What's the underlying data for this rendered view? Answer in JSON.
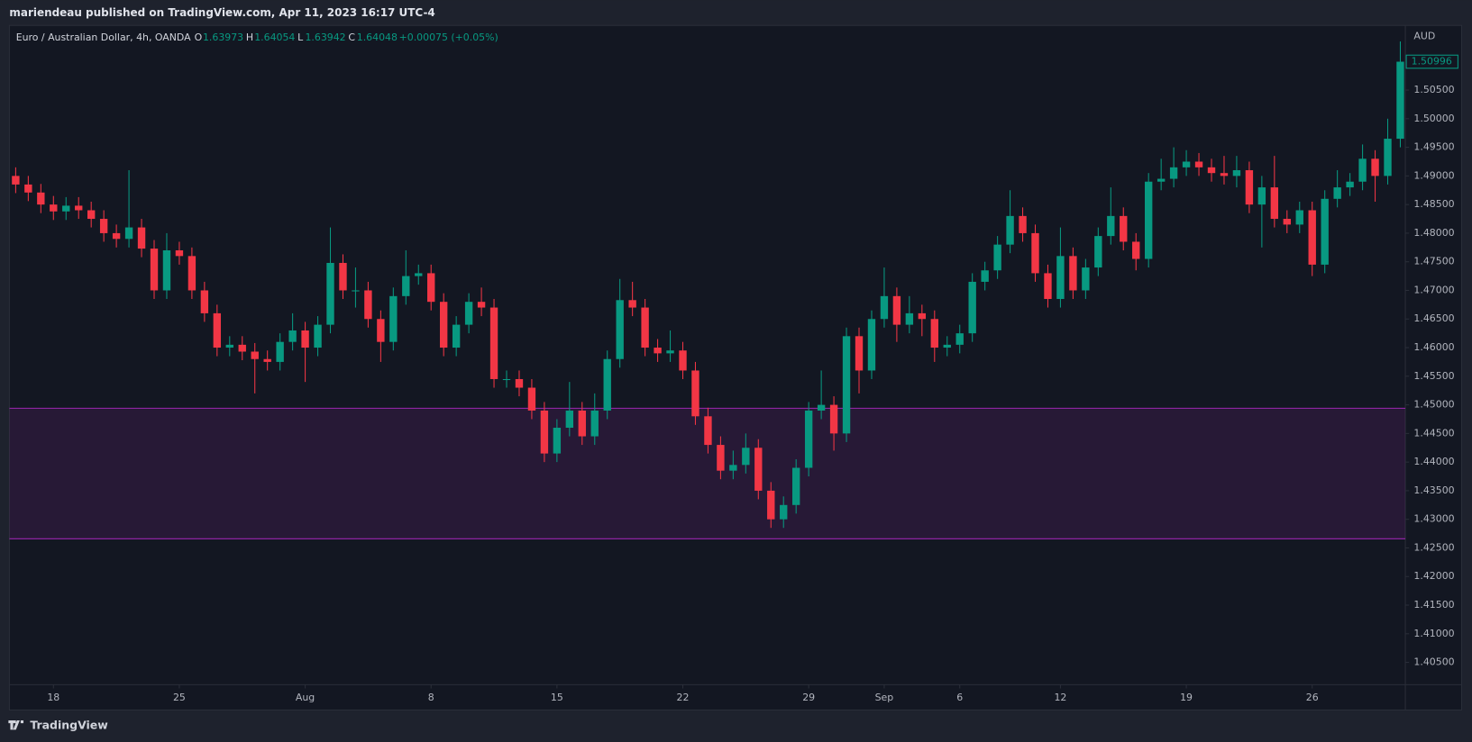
{
  "header": {
    "text": "mariendeau published on TradingView.com, Apr 11, 2023 16:17 UTC-4"
  },
  "footer": {
    "brand": "TradingView"
  },
  "chart_data": {
    "type": "candlestick",
    "legend": {
      "symbol": "Euro / Australian Dollar, 4h, OANDA",
      "open_label": "O",
      "open": 1.63973,
      "high_label": "H",
      "high": 1.64054,
      "low_label": "L",
      "low": 1.63942,
      "close_label": "C",
      "close": 1.64048,
      "change": "+0.00075 (+0.05%)"
    },
    "currency": "AUD",
    "up_color": "#089981",
    "down_color": "#f23645",
    "zone": {
      "low": 1.4266,
      "high": 1.4494,
      "color": "#9c27b0"
    },
    "grid": false,
    "xlim": [
      -1.75,
      53.7
    ],
    "xticks": [
      {
        "value": 0,
        "label": "18"
      },
      {
        "value": 5,
        "label": "25"
      },
      {
        "value": 10,
        "label": "Aug"
      },
      {
        "value": 15,
        "label": "8"
      },
      {
        "value": 20,
        "label": "15"
      },
      {
        "value": 25,
        "label": "22"
      },
      {
        "value": 30,
        "label": "29"
      },
      {
        "value": 33,
        "label": "Sep"
      },
      {
        "value": 36,
        "label": "6"
      },
      {
        "value": 40,
        "label": "12"
      },
      {
        "value": 45,
        "label": "19"
      },
      {
        "value": 50,
        "label": "26"
      }
    ],
    "ylim": [
      1.4011,
      1.5163
    ],
    "yticks": [
      {
        "value": 1.405,
        "label": "1.40500"
      },
      {
        "value": 1.41,
        "label": "1.41000"
      },
      {
        "value": 1.415,
        "label": "1.41500"
      },
      {
        "value": 1.42,
        "label": "1.42000"
      },
      {
        "value": 1.425,
        "label": "1.42500"
      },
      {
        "value": 1.43,
        "label": "1.43000"
      },
      {
        "value": 1.435,
        "label": "1.43500"
      },
      {
        "value": 1.44,
        "label": "1.44000"
      },
      {
        "value": 1.445,
        "label": "1.44500"
      },
      {
        "value": 1.45,
        "label": "1.45000"
      },
      {
        "value": 1.455,
        "label": "1.45500"
      },
      {
        "value": 1.46,
        "label": "1.46000"
      },
      {
        "value": 1.465,
        "label": "1.46500"
      },
      {
        "value": 1.47,
        "label": "1.47000"
      },
      {
        "value": 1.475,
        "label": "1.47500"
      },
      {
        "value": 1.48,
        "label": "1.48000"
      },
      {
        "value": 1.485,
        "label": "1.48500"
      },
      {
        "value": 1.49,
        "label": "1.49000"
      },
      {
        "value": 1.495,
        "label": "1.49500"
      },
      {
        "value": 1.5,
        "label": "1.50000"
      },
      {
        "value": 1.505,
        "label": "1.50500"
      }
    ],
    "x": [
      -1.5,
      -1,
      -0.5,
      0,
      0.5,
      1,
      1.5,
      2,
      2.5,
      3,
      3.5,
      4,
      4.5,
      5,
      5.5,
      6,
      6.5,
      7,
      7.5,
      8,
      8.5,
      9,
      9.5,
      10,
      10.5,
      11,
      11.5,
      12,
      12.5,
      13,
      13.5,
      14,
      14.5,
      15,
      15.5,
      16,
      16.5,
      17,
      17.5,
      18,
      18.5,
      19,
      19.5,
      20,
      20.5,
      21,
      21.5,
      22,
      22.5,
      23,
      23.5,
      24,
      24.5,
      25,
      25.5,
      26,
      26.5,
      27,
      27.5,
      28,
      28.5,
      29,
      29.5,
      30,
      30.5,
      31,
      31.5,
      32,
      32.5,
      33,
      33.5,
      34,
      34.5,
      35,
      35.5,
      36,
      36.5,
      37,
      37.5,
      38,
      38.5,
      39,
      39.5,
      40,
      40.5,
      41,
      41.5,
      42,
      42.5,
      43,
      43.5,
      44,
      44.5,
      45,
      45.5,
      46,
      46.5,
      47,
      47.5,
      48,
      48.5,
      49,
      49.5,
      50,
      50.5,
      51,
      51.5,
      52,
      52.5,
      53,
      53.5
    ],
    "open": [
      1.49,
      1.4885,
      1.4871,
      1.485,
      1.4838,
      1.4848,
      1.484,
      1.4825,
      1.48,
      1.479,
      1.481,
      1.4773,
      1.47,
      1.477,
      1.476,
      1.47,
      1.466,
      1.46,
      1.4605,
      1.4593,
      1.458,
      1.4575,
      1.461,
      1.463,
      1.46,
      1.464,
      1.4748,
      1.47,
      1.47,
      1.465,
      1.461,
      1.469,
      1.4725,
      1.473,
      1.468,
      1.46,
      1.464,
      1.468,
      1.467,
      1.4545,
      1.4545,
      1.453,
      1.449,
      1.4415,
      1.446,
      1.449,
      1.4445,
      1.449,
      1.458,
      1.4683,
      1.467,
      1.46,
      1.459,
      1.4595,
      1.456,
      1.448,
      1.443,
      1.4385,
      1.4395,
      1.4425,
      1.435,
      1.43,
      1.4325,
      1.439,
      1.449,
      1.45,
      1.445,
      1.462,
      1.456,
      1.465,
      1.469,
      1.464,
      1.466,
      1.465,
      1.46,
      1.4605,
      1.4625,
      1.4715,
      1.4735,
      1.478,
      1.483,
      1.48,
      1.473,
      1.4685,
      1.476,
      1.47,
      1.474,
      1.4795,
      1.483,
      1.4785,
      1.4755,
      1.489,
      1.4895,
      1.4915,
      1.4925,
      1.4915,
      1.4905,
      1.49,
      1.491,
      1.485,
      1.488,
      1.4825,
      1.4815,
      1.484,
      1.4745,
      1.486,
      1.488,
      1.489,
      1.493,
      1.49,
      1.4965
    ],
    "high": [
      1.4915,
      1.49,
      1.4886,
      1.4865,
      1.4863,
      1.4863,
      1.4855,
      1.484,
      1.4815,
      1.491,
      1.4825,
      1.4788,
      1.48,
      1.4785,
      1.4775,
      1.4715,
      1.4675,
      1.462,
      1.462,
      1.4608,
      1.4595,
      1.4625,
      1.466,
      1.4645,
      1.4655,
      1.481,
      1.4763,
      1.474,
      1.4715,
      1.4665,
      1.4705,
      1.477,
      1.4745,
      1.4745,
      1.4695,
      1.4655,
      1.4695,
      1.4705,
      1.4685,
      1.456,
      1.456,
      1.4545,
      1.4505,
      1.4475,
      1.454,
      1.4505,
      1.452,
      1.4595,
      1.472,
      1.4715,
      1.4685,
      1.4615,
      1.463,
      1.461,
      1.4575,
      1.4495,
      1.4445,
      1.442,
      1.445,
      1.444,
      1.4365,
      1.434,
      1.4405,
      1.4505,
      1.456,
      1.4515,
      1.4635,
      1.4635,
      1.4665,
      1.474,
      1.4705,
      1.469,
      1.4675,
      1.4665,
      1.462,
      1.464,
      1.473,
      1.475,
      1.4795,
      1.4875,
      1.4845,
      1.4815,
      1.4745,
      1.481,
      1.4775,
      1.4755,
      1.481,
      1.488,
      1.4845,
      1.48,
      1.4905,
      1.493,
      1.495,
      1.4945,
      1.494,
      1.493,
      1.4935,
      1.4935,
      1.4925,
      1.49,
      1.4935,
      1.484,
      1.4855,
      1.4855,
      1.4875,
      1.491,
      1.4905,
      1.4955,
      1.4945,
      1.5,
      1.5135
    ],
    "low": [
      1.487,
      1.4856,
      1.4835,
      1.4823,
      1.4823,
      1.4825,
      1.481,
      1.4785,
      1.4775,
      1.4775,
      1.4758,
      1.4685,
      1.4685,
      1.4745,
      1.4685,
      1.4645,
      1.4585,
      1.4585,
      1.4578,
      1.452,
      1.456,
      1.456,
      1.4595,
      1.454,
      1.4585,
      1.4625,
      1.4685,
      1.467,
      1.4635,
      1.4575,
      1.4595,
      1.4675,
      1.471,
      1.4665,
      1.4585,
      1.4585,
      1.4625,
      1.4655,
      1.453,
      1.453,
      1.4515,
      1.4475,
      1.44,
      1.44,
      1.4445,
      1.443,
      1.443,
      1.4475,
      1.4565,
      1.4655,
      1.4585,
      1.4575,
      1.4575,
      1.4545,
      1.4465,
      1.4415,
      1.437,
      1.437,
      1.438,
      1.4335,
      1.4285,
      1.4285,
      1.431,
      1.4375,
      1.4475,
      1.442,
      1.4435,
      1.452,
      1.4545,
      1.4635,
      1.461,
      1.4625,
      1.462,
      1.4575,
      1.4585,
      1.459,
      1.461,
      1.47,
      1.472,
      1.4765,
      1.4785,
      1.4715,
      1.467,
      1.467,
      1.4685,
      1.4685,
      1.4725,
      1.478,
      1.477,
      1.4735,
      1.474,
      1.4875,
      1.488,
      1.49,
      1.49,
      1.489,
      1.4885,
      1.488,
      1.4835,
      1.4775,
      1.481,
      1.48,
      1.48,
      1.4725,
      1.473,
      1.4845,
      1.4865,
      1.4875,
      1.4855,
      1.4885,
      1.495
    ],
    "close": [
      1.4885,
      1.4871,
      1.485,
      1.4838,
      1.4848,
      1.484,
      1.4825,
      1.48,
      1.479,
      1.481,
      1.4773,
      1.47,
      1.477,
      1.476,
      1.47,
      1.466,
      1.46,
      1.4605,
      1.4593,
      1.458,
      1.4575,
      1.461,
      1.463,
      1.46,
      1.464,
      1.4748,
      1.47,
      1.47,
      1.465,
      1.461,
      1.469,
      1.4725,
      1.473,
      1.468,
      1.46,
      1.464,
      1.468,
      1.467,
      1.4545,
      1.4545,
      1.453,
      1.449,
      1.4415,
      1.446,
      1.449,
      1.4445,
      1.449,
      1.458,
      1.4683,
      1.467,
      1.46,
      1.459,
      1.4595,
      1.456,
      1.448,
      1.443,
      1.4385,
      1.4395,
      1.4425,
      1.435,
      1.43,
      1.4325,
      1.439,
      1.449,
      1.45,
      1.445,
      1.462,
      1.456,
      1.465,
      1.469,
      1.464,
      1.466,
      1.465,
      1.46,
      1.4605,
      1.4625,
      1.4715,
      1.4735,
      1.478,
      1.483,
      1.48,
      1.473,
      1.4685,
      1.476,
      1.47,
      1.474,
      1.4795,
      1.483,
      1.4785,
      1.4755,
      1.489,
      1.4895,
      1.4915,
      1.4925,
      1.4915,
      1.4905,
      1.49,
      1.491,
      1.485,
      1.488,
      1.4825,
      1.4815,
      1.484,
      1.4745,
      1.486,
      1.488,
      1.489,
      1.493,
      1.49,
      1.4965,
      1.50996
    ]
  }
}
